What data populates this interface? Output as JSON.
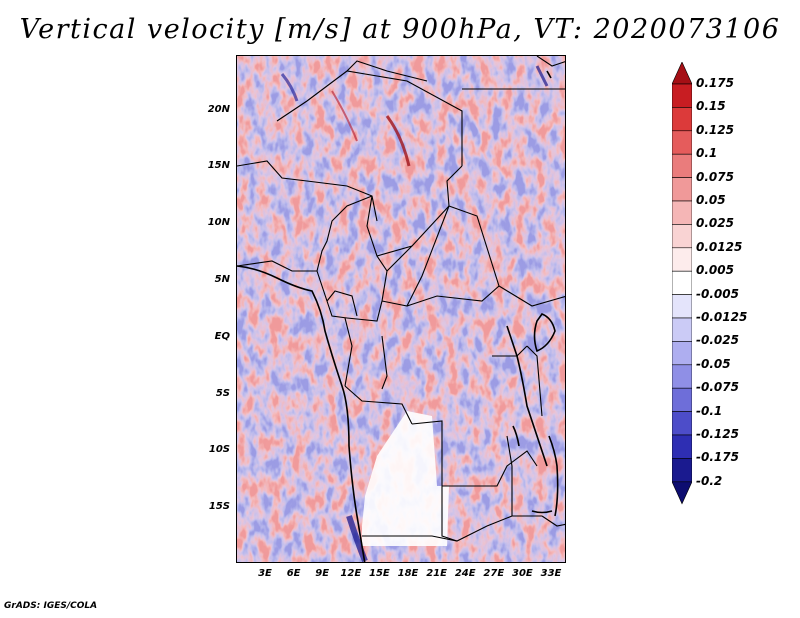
{
  "title": "Vertical velocity [m/s] at 900hPa, VT: 2020073106",
  "credit": "GrADS: IGES/COLA",
  "map": {
    "lat_labels": [
      "20N",
      "15N",
      "10N",
      "5N",
      "EQ",
      "5S",
      "10S",
      "15S"
    ],
    "lon_labels": [
      "3E",
      "6E",
      "9E",
      "12E",
      "15E",
      "18E",
      "21E",
      "24E",
      "27E",
      "30E",
      "33E"
    ],
    "shading_colors": {
      "strong_positive": "#b2182b",
      "positive": "#ef8a8a",
      "weak_positive": "#fcd5d5",
      "weak_negative": "#d6d6f5",
      "negative": "#8c8ce0",
      "strong_negative": "#2b2b9e"
    }
  },
  "colorbar": {
    "labels": [
      "0.175",
      "0.15",
      "0.125",
      "0.1",
      "0.075",
      "0.05",
      "0.025",
      "0.0125",
      "0.005",
      "-0.005",
      "-0.0125",
      "-0.025",
      "-0.05",
      "-0.075",
      "-0.1",
      "-0.125",
      "-0.175",
      "-0.2"
    ],
    "colors": [
      "#a50f15",
      "#c81d22",
      "#dc3a3a",
      "#e55c5c",
      "#ea7c7c",
      "#f09999",
      "#f5b6b6",
      "#f9d3d3",
      "#fdecec",
      "#ffffff",
      "#e4e4fb",
      "#cbcbf6",
      "#aeaef0",
      "#8f8fe6",
      "#6e6ed9",
      "#4d4dc9",
      "#2e2eb3",
      "#1a1a8f",
      "#0d0d70"
    ]
  }
}
